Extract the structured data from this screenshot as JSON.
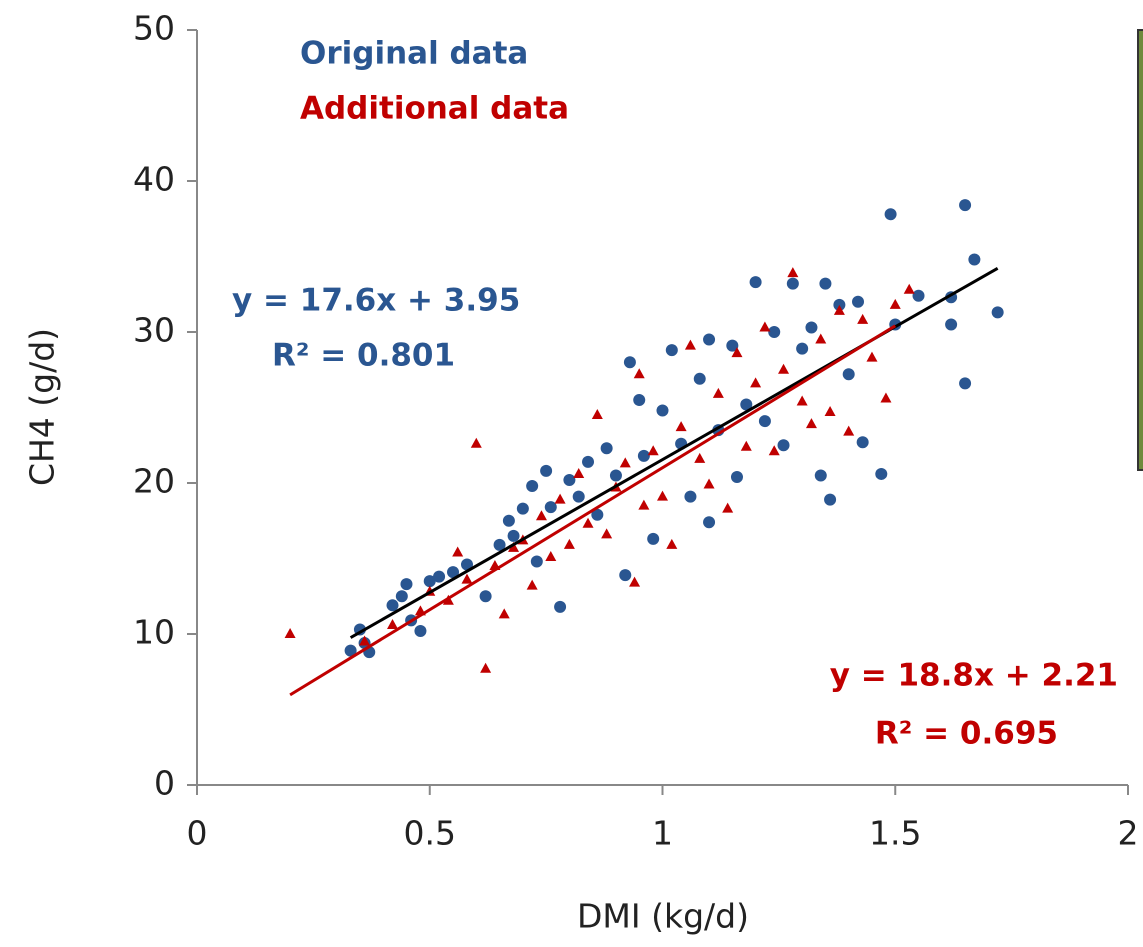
{
  "chart_data": {
    "type": "scatter",
    "xlabel": "DMI (kg/d)",
    "ylabel": "CH4 (g/d)",
    "xlim": [
      0,
      2
    ],
    "ylim": [
      0,
      50
    ],
    "xticks": [
      0,
      0.5,
      1,
      1.5,
      2
    ],
    "yticks": [
      0,
      10,
      20,
      30,
      40,
      50
    ],
    "grid": false,
    "series": [
      {
        "name": "Original data",
        "color": "#2a5691",
        "marker": "circle",
        "x": [
          0.33,
          0.35,
          0.36,
          0.37,
          0.42,
          0.44,
          0.45,
          0.46,
          0.48,
          0.5,
          0.52,
          0.55,
          0.58,
          0.62,
          0.65,
          0.67,
          0.68,
          0.7,
          0.72,
          0.73,
          0.75,
          0.76,
          0.78,
          0.8,
          0.82,
          0.84,
          0.86,
          0.88,
          0.9,
          0.92,
          0.93,
          0.95,
          0.96,
          0.98,
          1.0,
          1.02,
          1.04,
          1.06,
          1.08,
          1.1,
          1.1,
          1.12,
          1.15,
          1.16,
          1.18,
          1.2,
          1.22,
          1.24,
          1.26,
          1.28,
          1.3,
          1.32,
          1.34,
          1.35,
          1.36,
          1.38,
          1.4,
          1.42,
          1.43,
          1.47,
          1.49,
          1.5,
          1.55,
          1.62,
          1.62,
          1.65,
          1.65,
          1.67,
          1.72
        ],
        "values": [
          8.9,
          10.3,
          9.4,
          8.8,
          11.9,
          12.5,
          13.3,
          10.9,
          10.2,
          13.5,
          13.8,
          14.1,
          14.6,
          12.5,
          15.9,
          17.5,
          16.5,
          18.3,
          19.8,
          14.8,
          20.8,
          18.4,
          11.8,
          20.2,
          19.1,
          21.4,
          17.9,
          22.3,
          20.5,
          13.9,
          28,
          25.5,
          21.8,
          16.3,
          24.8,
          28.8,
          22.6,
          19.1,
          26.9,
          29.5,
          17.4,
          23.5,
          29.1,
          20.4,
          25.2,
          33.3,
          24.1,
          30,
          22.5,
          33.2,
          28.9,
          30.3,
          20.5,
          33.2,
          18.9,
          31.8,
          27.2,
          32,
          22.7,
          20.6,
          37.8,
          30.5,
          32.4,
          30.5,
          32.3,
          38.4,
          26.6,
          34.8,
          31.3
        ],
        "fit": {
          "x": [
            0.33,
            1.72
          ],
          "values": [
            9.76,
            34.22
          ],
          "color": "#000000"
        }
      },
      {
        "name": "Additional data",
        "color": "#c00000",
        "marker": "triangle",
        "x": [
          0.2,
          0.36,
          0.42,
          0.48,
          0.5,
          0.54,
          0.56,
          0.58,
          0.6,
          0.62,
          0.64,
          0.66,
          0.68,
          0.7,
          0.72,
          0.74,
          0.76,
          0.78,
          0.8,
          0.82,
          0.84,
          0.86,
          0.88,
          0.9,
          0.92,
          0.94,
          0.95,
          0.96,
          0.98,
          1.0,
          1.02,
          1.04,
          1.06,
          1.08,
          1.1,
          1.12,
          1.14,
          1.16,
          1.18,
          1.2,
          1.22,
          1.24,
          1.26,
          1.28,
          1.3,
          1.32,
          1.34,
          1.36,
          1.38,
          1.4,
          1.43,
          1.45,
          1.48,
          1.5,
          1.53
        ],
        "values": [
          10,
          9.5,
          10.6,
          11.5,
          12.8,
          12.2,
          15.4,
          13.6,
          22.6,
          7.7,
          14.5,
          11.3,
          15.7,
          16.2,
          13.2,
          17.8,
          15.1,
          18.9,
          15.9,
          20.6,
          17.3,
          24.5,
          16.6,
          19.7,
          21.3,
          13.4,
          27.2,
          18.5,
          22.1,
          19.1,
          15.9,
          23.7,
          29.1,
          21.6,
          19.9,
          25.9,
          18.3,
          28.6,
          22.4,
          26.6,
          30.3,
          22.1,
          27.5,
          33.9,
          25.4,
          23.9,
          29.5,
          24.7,
          31.4,
          23.4,
          30.8,
          28.3,
          25.6,
          31.8,
          32.8
        ],
        "fit": {
          "x": [
            0.2,
            1.5
          ],
          "values": [
            5.97,
            30.41
          ],
          "color": "#c00000"
        }
      }
    ],
    "annotations": [
      {
        "text": "y = 17.6x + 3.95",
        "color": "#2a5691"
      },
      {
        "text": "R² = 0.801",
        "color": "#2a5691"
      },
      {
        "text": "y = 18.8x + 2.21",
        "color": "#c00000"
      },
      {
        "text": "R² = 0.695",
        "color": "#c00000"
      }
    ]
  }
}
